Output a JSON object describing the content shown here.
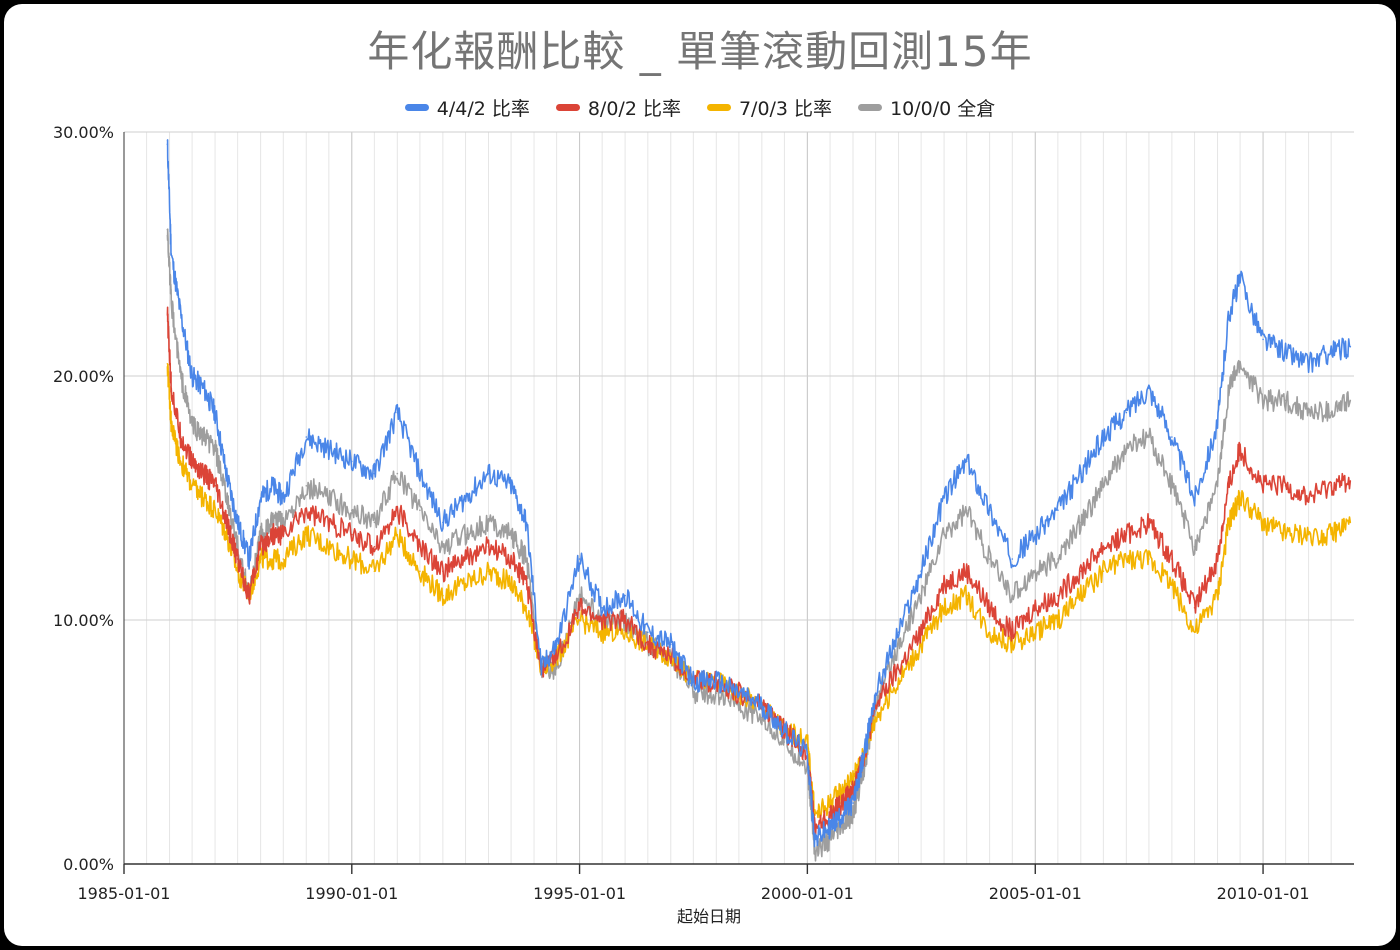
{
  "chart_data": {
    "type": "line",
    "title": "年化報酬比較 _ 單筆滾動回測15年",
    "xlabel": "起始日期",
    "ylabel": "",
    "x_range": [
      "1985-01-01",
      "2011-12-31"
    ],
    "ylim": [
      0,
      30
    ],
    "x_ticks": [
      "1985-01-01",
      "1990-01-01",
      "1995-01-01",
      "2000-01-01",
      "2005-01-01",
      "2010-01-01"
    ],
    "y_ticks": [
      "0.00%",
      "10.00%",
      "20.00%",
      "30.00%"
    ],
    "grid": true,
    "legend_position": "top",
    "x": [
      "1985-12-15",
      "1986-01-15",
      "1986-04-01",
      "1986-07-01",
      "1986-10-01",
      "1987-01-01",
      "1987-04-01",
      "1987-07-01",
      "1987-10-01",
      "1988-01-01",
      "1988-04-01",
      "1988-07-01",
      "1989-01-01",
      "1989-07-01",
      "1990-01-01",
      "1990-07-01",
      "1991-01-01",
      "1991-07-01",
      "1992-01-01",
      "1992-07-01",
      "1993-01-01",
      "1993-07-01",
      "1993-11-01",
      "1994-03-01",
      "1994-07-01",
      "1995-01-01",
      "1995-07-01",
      "1996-01-01",
      "1996-07-01",
      "1997-01-01",
      "1997-07-01",
      "1998-01-01",
      "1998-07-01",
      "1999-01-01",
      "1999-07-01",
      "2000-01-01",
      "2000-03-01",
      "2000-07-01",
      "2000-10-01",
      "2001-01-01",
      "2001-04-01",
      "2001-07-01",
      "2002-01-01",
      "2002-07-01",
      "2003-01-01",
      "2003-07-01",
      "2004-01-01",
      "2004-07-01",
      "2005-01-01",
      "2005-07-01",
      "2006-01-01",
      "2006-07-01",
      "2007-01-01",
      "2007-07-01",
      "2008-01-01",
      "2008-07-01",
      "2009-01-01",
      "2009-04-01",
      "2009-07-01",
      "2010-01-01",
      "2010-07-01",
      "2011-01-01",
      "2011-07-01",
      "2011-12-01"
    ],
    "series": [
      {
        "name": "4/4/2 比率",
        "color": "#4a86e8",
        "values": [
          29.5,
          25.0,
          22.5,
          20.0,
          19.5,
          18.5,
          16.0,
          14.0,
          12.5,
          15.0,
          15.5,
          15.0,
          17.5,
          17.0,
          16.5,
          16.0,
          18.5,
          16.0,
          14.0,
          15.0,
          16.0,
          15.5,
          14.0,
          8.0,
          9.0,
          12.5,
          10.5,
          11.0,
          9.5,
          9.0,
          7.5,
          7.5,
          7.0,
          6.5,
          5.5,
          4.5,
          1.0,
          1.5,
          2.0,
          2.5,
          4.5,
          7.0,
          9.5,
          12.0,
          15.0,
          16.5,
          14.5,
          12.5,
          13.5,
          14.5,
          16.0,
          17.5,
          18.5,
          19.5,
          17.5,
          15.0,
          18.0,
          22.5,
          24.0,
          21.5,
          21.0,
          20.5,
          21.0,
          21.2
        ]
      },
      {
        "name": "8/0/2 比率",
        "color": "#db4437",
        "values": [
          22.5,
          19.5,
          17.5,
          16.5,
          16.0,
          15.5,
          14.0,
          12.5,
          11.0,
          13.0,
          13.5,
          13.5,
          14.5,
          14.0,
          13.5,
          13.0,
          14.5,
          13.0,
          12.0,
          12.5,
          13.0,
          12.5,
          11.5,
          8.0,
          8.5,
          10.5,
          10.0,
          10.0,
          9.0,
          8.5,
          7.5,
          7.5,
          7.0,
          6.5,
          5.5,
          4.5,
          1.5,
          2.0,
          2.5,
          3.0,
          4.5,
          6.5,
          8.0,
          9.5,
          11.5,
          12.0,
          10.5,
          9.5,
          10.5,
          11.0,
          12.0,
          13.0,
          13.5,
          14.0,
          12.5,
          10.5,
          12.5,
          15.5,
          17.0,
          15.5,
          15.5,
          15.0,
          15.5,
          15.7
        ]
      },
      {
        "name": "7/0/3 比率",
        "color": "#f4b400",
        "values": [
          20.5,
          18.0,
          16.5,
          15.5,
          15.0,
          14.5,
          13.5,
          12.0,
          11.0,
          12.5,
          12.5,
          12.5,
          13.5,
          13.0,
          12.5,
          12.0,
          13.5,
          12.0,
          11.0,
          11.5,
          12.0,
          11.5,
          10.5,
          8.0,
          8.5,
          10.0,
          9.5,
          9.5,
          9.0,
          8.5,
          7.5,
          7.5,
          7.0,
          6.5,
          5.5,
          5.0,
          2.0,
          2.5,
          3.0,
          3.5,
          4.5,
          6.0,
          7.5,
          9.0,
          10.5,
          11.0,
          9.5,
          9.0,
          9.5,
          10.0,
          11.0,
          12.0,
          12.5,
          12.5,
          11.5,
          9.5,
          11.0,
          14.0,
          15.0,
          14.0,
          13.5,
          13.5,
          13.5,
          14.0
        ]
      },
      {
        "name": "10/0/0 全倉",
        "color": "#9e9e9e",
        "values": [
          26.0,
          23.0,
          20.0,
          18.0,
          17.5,
          17.0,
          15.0,
          13.0,
          11.0,
          13.5,
          14.0,
          14.0,
          15.5,
          15.0,
          14.5,
          14.0,
          16.0,
          14.5,
          13.0,
          13.5,
          14.0,
          13.5,
          12.5,
          8.0,
          8.0,
          11.0,
          10.0,
          10.0,
          9.0,
          8.5,
          7.0,
          7.0,
          6.5,
          6.0,
          5.0,
          4.0,
          0.5,
          1.0,
          1.5,
          2.0,
          4.0,
          6.5,
          9.0,
          11.0,
          13.5,
          14.5,
          12.5,
          11.0,
          12.0,
          12.5,
          14.0,
          15.5,
          17.0,
          17.5,
          15.5,
          13.0,
          15.5,
          19.5,
          20.5,
          19.0,
          19.0,
          18.5,
          18.5,
          19.0
        ]
      }
    ]
  }
}
